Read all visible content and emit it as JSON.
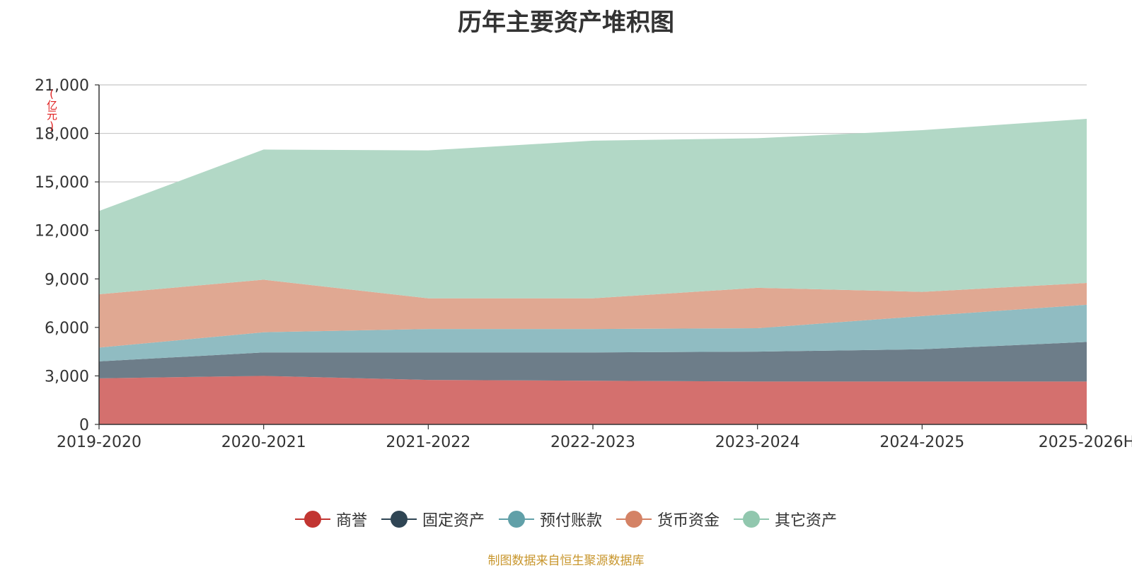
{
  "title": "历年主要资产堆积图",
  "unit_label": "(亿元)",
  "source": "制图数据来自恒生聚源数据库",
  "chart_data": {
    "type": "area",
    "stacked": true,
    "title": "历年主要资产堆积图",
    "ylabel": "(亿元)",
    "xlabel": "",
    "ylim": [
      0,
      21000
    ],
    "yticks": [
      0,
      3000,
      6000,
      9000,
      12000,
      15000,
      18000,
      21000
    ],
    "ytick_labels": [
      "0",
      "3,000",
      "6,000",
      "9,000",
      "12,000",
      "15,000",
      "18,000",
      "21,000"
    ],
    "categories": [
      "2019-2020",
      "2020-2021",
      "2021-2022",
      "2022-2023",
      "2023-2024",
      "2024-2025",
      "2025-2026H"
    ],
    "grid": true,
    "legend_position": "bottom",
    "series": [
      {
        "name": "商誉",
        "color": "#c23531",
        "legend_color": "#c23531",
        "area_color": "#d4706e",
        "values": [
          2850,
          3000,
          2750,
          2700,
          2650,
          2650,
          2650
        ]
      },
      {
        "name": "固定资产",
        "color": "#2f4554",
        "legend_color": "#2f4554",
        "area_color": "#6d7d89",
        "values": [
          1050,
          1450,
          1700,
          1750,
          1850,
          2000,
          2450
        ]
      },
      {
        "name": "预付账款",
        "color": "#61a0a8",
        "legend_color": "#61a0a8",
        "area_color": "#90bcc2",
        "values": [
          850,
          1250,
          1450,
          1450,
          1450,
          2050,
          2300
        ]
      },
      {
        "name": "货币资金",
        "color": "#d48265",
        "legend_color": "#d48265",
        "area_color": "#e0a892",
        "values": [
          3300,
          3250,
          1900,
          1900,
          2500,
          1500,
          1350
        ]
      },
      {
        "name": "其它资产",
        "color": "#91c7ae",
        "legend_color": "#91c7ae",
        "area_color": "#b2d8c6",
        "values": [
          5150,
          8050,
          9150,
          9750,
          9250,
          10000,
          10150
        ]
      }
    ]
  }
}
